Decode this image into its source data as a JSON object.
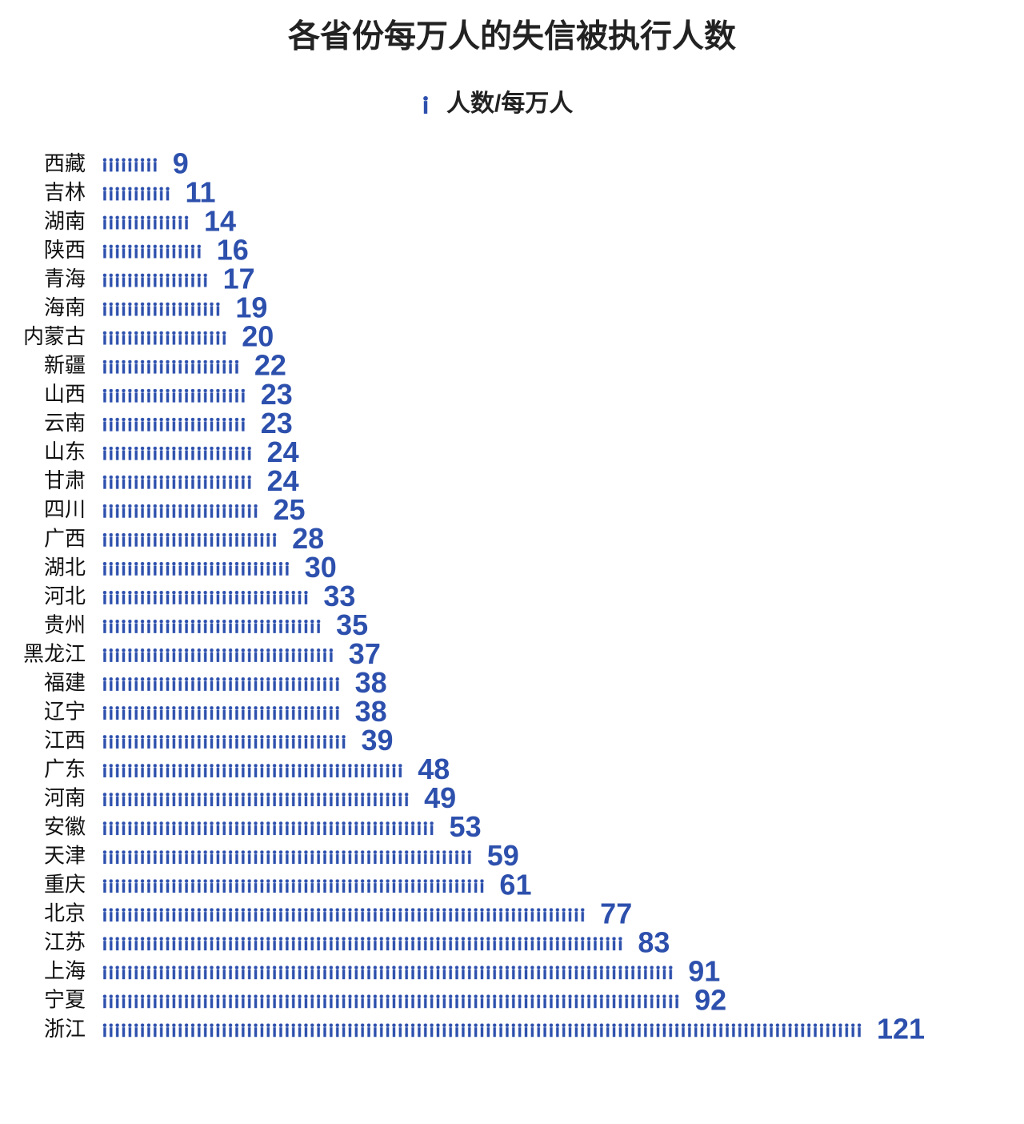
{
  "chart_data": {
    "type": "bar",
    "orientation": "horizontal",
    "pictogram": true,
    "title": "各省份每万人的失信被执行人数",
    "categories": [
      "西藏",
      "吉林",
      "湖南",
      "陕西",
      "青海",
      "海南",
      "内蒙古",
      "新疆",
      "山西",
      "云南",
      "山东",
      "甘肃",
      "四川",
      "广西",
      "湖北",
      "河北",
      "贵州",
      "黑龙江",
      "福建",
      "辽宁",
      "江西",
      "广东",
      "河南",
      "安徽",
      "天津",
      "重庆",
      "北京",
      "江苏",
      "上海",
      "宁夏",
      "浙江"
    ],
    "series": [
      {
        "name": "人数/每万人",
        "color": "#2d50ad",
        "values": [
          9,
          11,
          14,
          16,
          17,
          19,
          20,
          22,
          23,
          23,
          24,
          24,
          25,
          28,
          30,
          33,
          35,
          37,
          38,
          38,
          39,
          48,
          49,
          53,
          59,
          61,
          77,
          83,
          91,
          92,
          121
        ]
      }
    ]
  }
}
